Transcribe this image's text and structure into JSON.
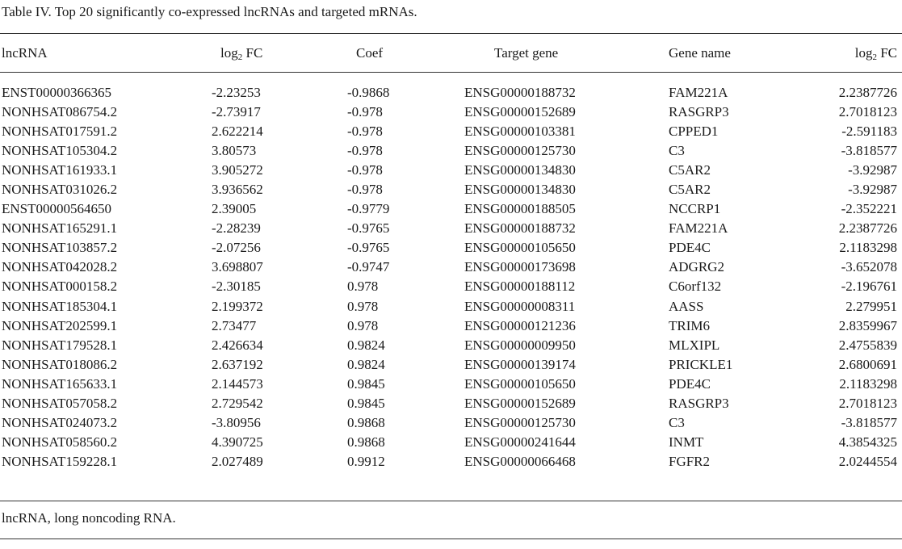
{
  "caption": "Table IV. Top 20 significantly co-expressed lncRNAs and targeted mRNAs.",
  "headers": {
    "lncrna": "lncRNA",
    "log_prefix": "log",
    "log_sub": "2",
    "log_suffix": " FC",
    "coef": "Coef",
    "target_gene": "Target gene",
    "gene_name": "Gene name"
  },
  "rows": [
    [
      "ENST00000366365",
      "-2.23253",
      "-0.9868",
      "ENSG00000188732",
      "FAM221A",
      "2.2387726"
    ],
    [
      "NONHSAT086754.2",
      "-2.73917",
      "-0.978",
      "ENSG00000152689",
      "RASGRP3",
      "2.7018123"
    ],
    [
      "NONHSAT017591.2",
      "2.622214",
      "-0.978",
      "ENSG00000103381",
      "CPPED1",
      "-2.591183"
    ],
    [
      "NONHSAT105304.2",
      "3.80573",
      "-0.978",
      "ENSG00000125730",
      "C3",
      "-3.818577"
    ],
    [
      "NONHSAT161933.1",
      "3.905272",
      "-0.978",
      "ENSG00000134830",
      "C5AR2",
      "-3.92987"
    ],
    [
      "NONHSAT031026.2",
      "3.936562",
      "-0.978",
      "ENSG00000134830",
      "C5AR2",
      "-3.92987"
    ],
    [
      "ENST00000564650",
      "2.39005",
      "-0.9779",
      "ENSG00000188505",
      "NCCRP1",
      "-2.352221"
    ],
    [
      "NONHSAT165291.1",
      "-2.28239",
      "-0.9765",
      "ENSG00000188732",
      "FAM221A",
      "2.2387726"
    ],
    [
      "NONHSAT103857.2",
      "-2.07256",
      "-0.9765",
      "ENSG00000105650",
      "PDE4C",
      "2.1183298"
    ],
    [
      "NONHSAT042028.2",
      "3.698807",
      "-0.9747",
      "ENSG00000173698",
      "ADGRG2",
      "-3.652078"
    ],
    [
      "NONHSAT000158.2",
      "-2.30185",
      "0.978",
      "ENSG00000188112",
      "C6orf132",
      "-2.196761"
    ],
    [
      "NONHSAT185304.1",
      "2.199372",
      "0.978",
      "ENSG00000008311",
      "AASS",
      "2.279951"
    ],
    [
      "NONHSAT202599.1",
      "2.73477",
      "0.978",
      "ENSG00000121236",
      "TRIM6",
      "2.8359967"
    ],
    [
      "NONHSAT179528.1",
      "2.426634",
      "0.9824",
      "ENSG00000009950",
      "MLXIPL",
      "2.4755839"
    ],
    [
      "NONHSAT018086.2",
      "2.637192",
      "0.9824",
      "ENSG00000139174",
      "PRICKLE1",
      "2.6800691"
    ],
    [
      "NONHSAT165633.1",
      "2.144573",
      "0.9845",
      "ENSG00000105650",
      "PDE4C",
      "2.1183298"
    ],
    [
      "NONHSAT057058.2",
      "2.729542",
      "0.9845",
      "ENSG00000152689",
      "RASGRP3",
      "2.7018123"
    ],
    [
      "NONHSAT024073.2",
      "-3.80956",
      "0.9868",
      "ENSG00000125730",
      "C3",
      "-3.818577"
    ],
    [
      "NONHSAT058560.2",
      "4.390725",
      "0.9868",
      "ENSG00000241644",
      "INMT",
      "4.3854325"
    ],
    [
      "NONHSAT159228.1",
      "2.027489",
      "0.9912",
      "ENSG00000066468",
      "FGFR2",
      "2.0244554"
    ]
  ],
  "footnote": "lncRNA, long noncoding RNA."
}
